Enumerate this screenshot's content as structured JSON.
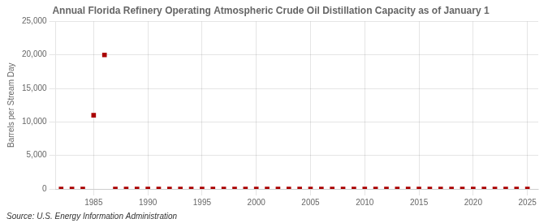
{
  "chart_data": {
    "type": "scatter",
    "title": "Annual Florida Refinery Operating Atmospheric Crude Oil Distillation Capacity as of January 1",
    "y_label": "Barrels per Stream Day",
    "annotations": [
      "Source: U.S. Energy Information Administration"
    ],
    "x": [
      1982,
      1983,
      1984,
      1985,
      1986,
      1987,
      1988,
      1989,
      1990,
      1991,
      1992,
      1993,
      1994,
      1995,
      1996,
      1997,
      1998,
      1999,
      2000,
      2001,
      2002,
      2003,
      2004,
      2005,
      2006,
      2007,
      2008,
      2009,
      2010,
      2011,
      2012,
      2013,
      2014,
      2015,
      2016,
      2017,
      2018,
      2019,
      2020,
      2021,
      2022,
      2023,
      2024,
      2025
    ],
    "values": [
      0,
      0,
      0,
      11000,
      20000,
      0,
      0,
      0,
      0,
      0,
      0,
      0,
      0,
      0,
      0,
      0,
      0,
      0,
      0,
      0,
      0,
      0,
      0,
      0,
      0,
      0,
      0,
      0,
      0,
      0,
      0,
      0,
      0,
      0,
      0,
      0,
      0,
      0,
      0,
      0,
      0,
      0,
      0,
      0
    ],
    "color": "#aa0000",
    "marker": "square",
    "xlim": [
      1981.5,
      2026
    ],
    "xticks": [
      1985,
      1990,
      1995,
      2000,
      2005,
      2010,
      2015,
      2020,
      2025
    ],
    "ylim": [
      0,
      25000
    ],
    "yticks": [
      0,
      {
        "value": 5000,
        "label": "5,000"
      },
      {
        "value": 10000,
        "label": "10,000"
      },
      {
        "value": 15000,
        "label": "15,000"
      },
      {
        "value": 20000,
        "label": "20,000"
      },
      {
        "value": 25000,
        "label": "25,000"
      }
    ],
    "grid": true
  }
}
